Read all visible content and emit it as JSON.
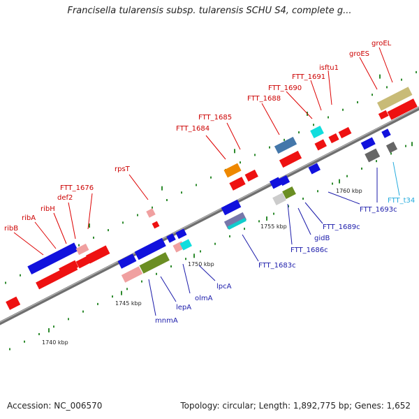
{
  "title": "Francisella tularensis subsp. tularensis SCHU S4, complete g...",
  "footer": {
    "accession": "Accession: NC_006570",
    "topology": "Topology: circular; Length: 1,892,775 bp; Genes: 1,652"
  },
  "colors": {
    "background": "#ffffff",
    "backbone": "#777777",
    "forward_label": "#cc0000",
    "reverse_label": "#1a1aaa",
    "trna_label": "#22aadd",
    "tick": "#2e8b2e"
  },
  "scale_labels": [
    "1740 kbp",
    "1745 kbp",
    "1750 kbp",
    "1755 kbp",
    "1760 kbp"
  ],
  "forward_labels": [
    "ribB",
    "ribA",
    "ribH",
    "def2",
    "FTT_1676",
    "rpsT",
    "FTT_1684",
    "FTT_1685",
    "FTT_1688",
    "FTT_1690",
    "FTT_1691",
    "isftu1",
    "groES",
    "groEL"
  ],
  "reverse_labels": [
    "mnmA",
    "lepA",
    "olmA",
    "lpcA",
    "FTT_1683c",
    "FTT_1686c",
    "gidB",
    "FTT_1689c",
    "FTT_1693c"
  ],
  "trna_labels": [
    "FTT_t34"
  ]
}
